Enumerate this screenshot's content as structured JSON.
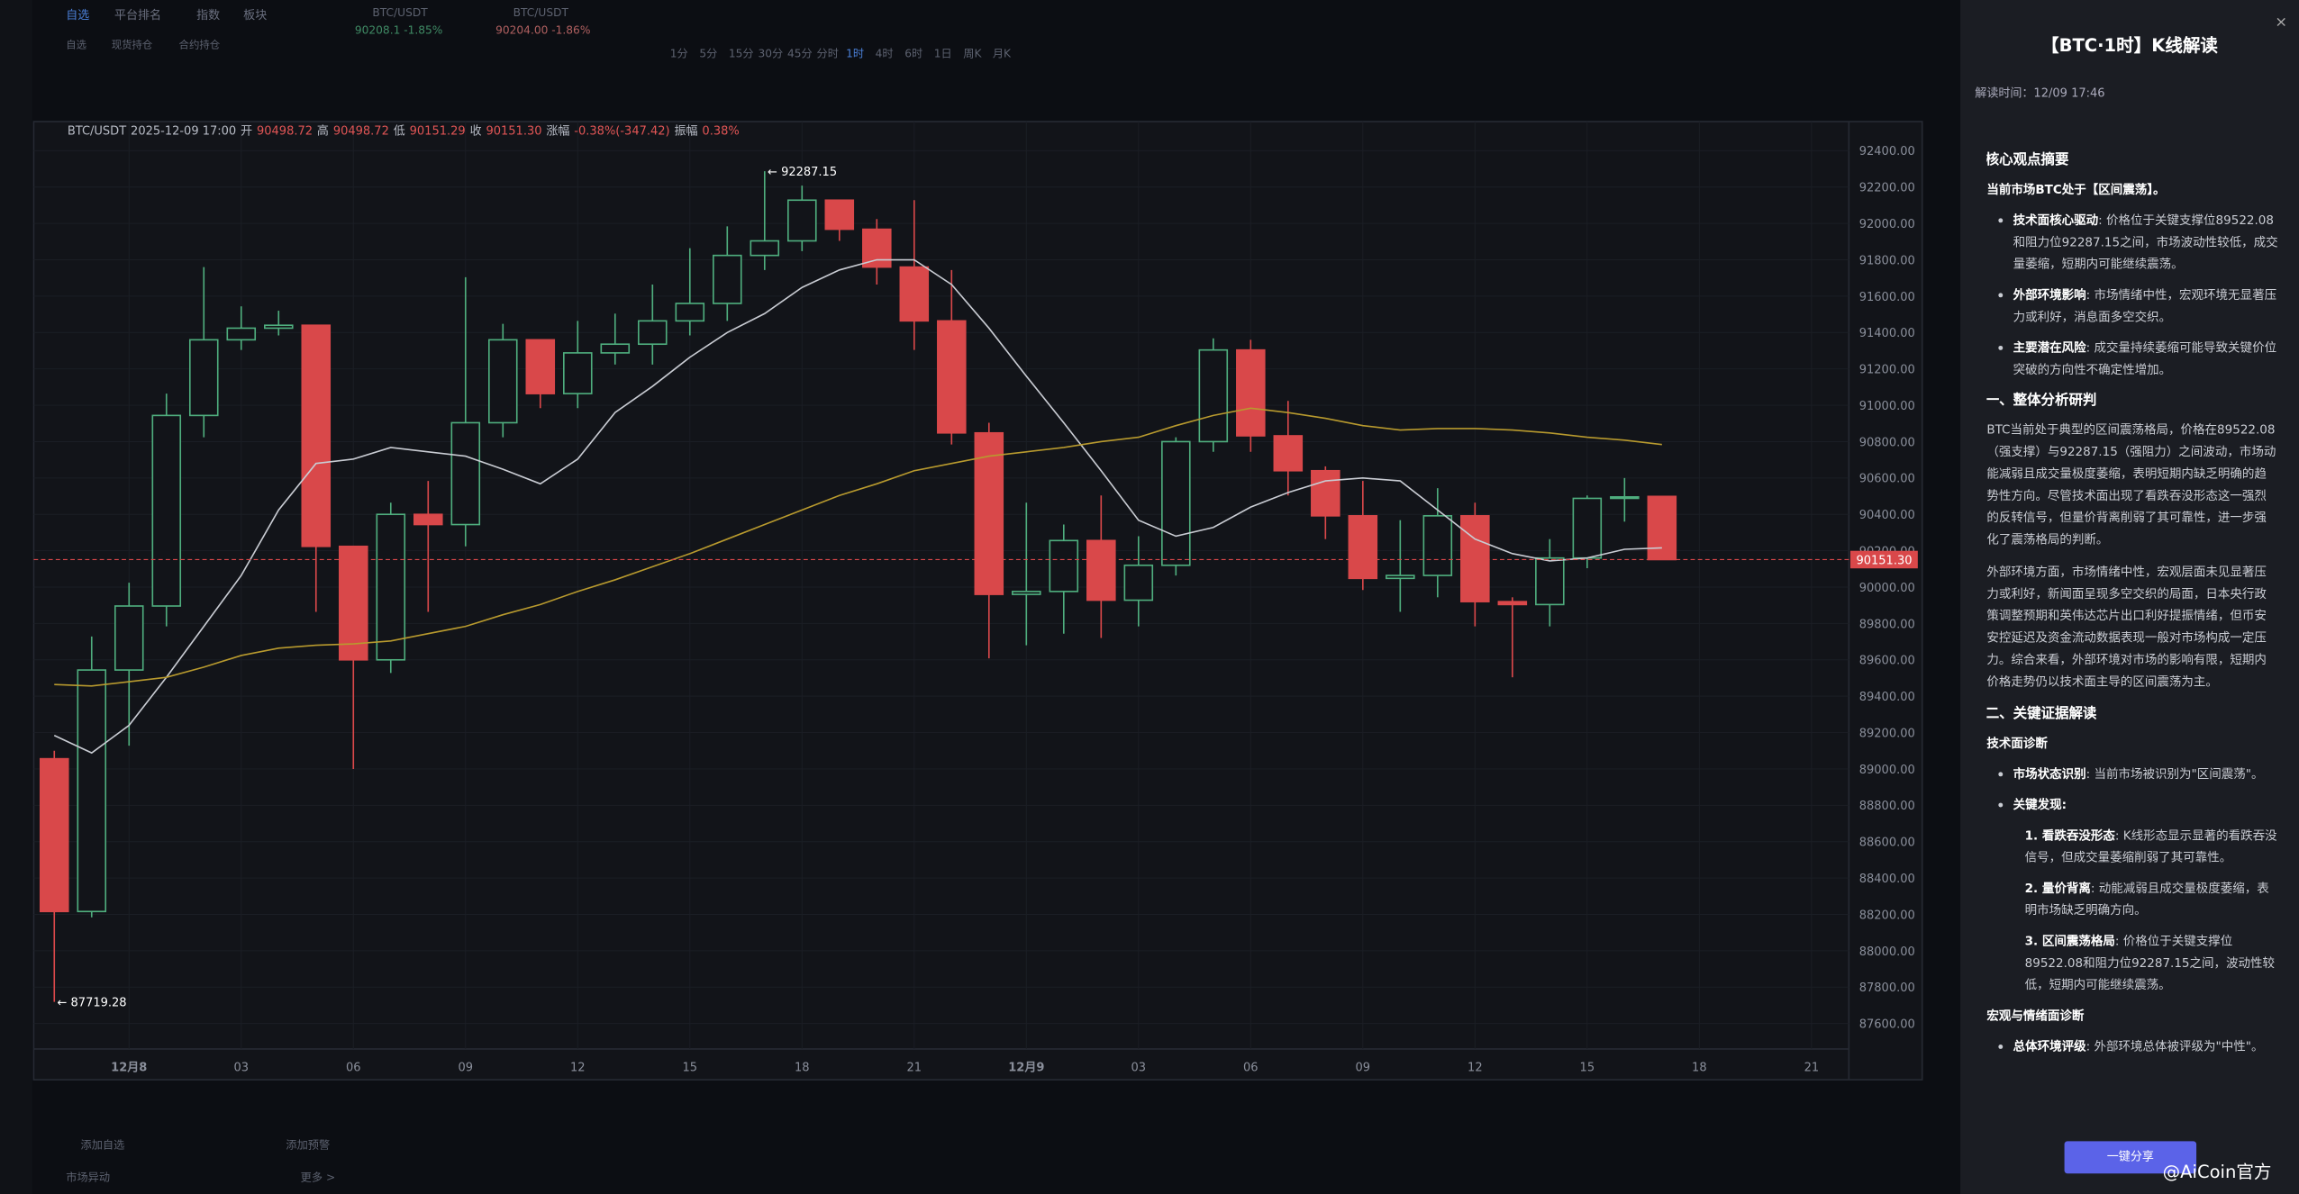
{
  "chart_data": {
    "type": "candlestick",
    "info": [
      "BTC/USDT",
      "2025-12-09 17:00",
      "开",
      "90498.72",
      "高",
      "90498.72",
      "低",
      "90151.29",
      "收",
      "90151.30",
      "涨幅",
      "-0.38%(-347.42)",
      "振幅",
      "0.38%"
    ],
    "open": [
      89056,
      88216,
      89544,
      89896,
      90944,
      91360,
      91424,
      91440,
      90224,
      89600,
      90400,
      90344,
      90904,
      91360,
      91064,
      91288,
      91336,
      91464,
      91560,
      91824,
      91904,
      92128,
      91968,
      91760,
      91464,
      90848,
      89960,
      89976,
      90256,
      89928,
      90120,
      90800,
      91304,
      90832,
      90640,
      90392,
      90048,
      90064,
      90392,
      89920,
      89904,
      90160,
      90488,
      90498.72
    ],
    "high": [
      89100,
      89728,
      90024,
      91064,
      91760,
      91544,
      91520,
      91440,
      90224,
      90464,
      90584,
      91704,
      91448,
      91360,
      91464,
      91504,
      91664,
      91864,
      91984,
      92287.15,
      92208,
      92128,
      92024,
      92128,
      91744,
      90904,
      90464,
      90344,
      90504,
      90280,
      90824,
      91368,
      91360,
      91024,
      90664,
      90584,
      90368,
      90544,
      90464,
      89944,
      90264,
      90504,
      90600,
      90498.72
    ],
    "low": [
      87719.28,
      88184,
      89128,
      89784,
      90824,
      91304,
      91384,
      89864,
      89000,
      89528,
      89864,
      90224,
      90824,
      90984,
      90984,
      91224,
      91224,
      91384,
      91464,
      91744,
      91848,
      91904,
      91664,
      91304,
      90784,
      89608,
      89680,
      89744,
      89720,
      89784,
      90064,
      90744,
      90744,
      90504,
      90264,
      89984,
      89864,
      89944,
      89784,
      89504,
      89784,
      90104,
      90360,
      90151.29
    ],
    "close": [
      88216,
      89544,
      89896,
      90944,
      91360,
      91424,
      91440,
      90224,
      89600,
      90400,
      90344,
      90904,
      91360,
      91064,
      91288,
      91336,
      91464,
      91560,
      91824,
      91904,
      92128,
      91968,
      91760,
      91464,
      90848,
      89960,
      89976,
      90256,
      89928,
      90120,
      90800,
      91304,
      90832,
      90640,
      90392,
      90048,
      90064,
      90392,
      89920,
      89904,
      90160,
      90488,
      90496,
      90151.3
    ],
    "up_color": "#4fae7e",
    "down_color": "#d9484a",
    "series": [
      {
        "color": "#c9ccd3",
        "values": [
          89184,
          89088,
          89240,
          89504,
          89784,
          90064,
          90424,
          90680,
          90704,
          90768,
          90744,
          90720,
          90648,
          90568,
          90704,
          90960,
          91104,
          91264,
          91400,
          91504,
          91648,
          91744,
          91800,
          91800,
          91664,
          91424,
          91160,
          90904,
          90640,
          90368,
          90280,
          90328,
          90440,
          90520,
          90584,
          90600,
          90584,
          90424,
          90264,
          90184,
          90144,
          90160,
          90208,
          90216
        ]
      },
      {
        "color": "#b89a2e",
        "values": [
          89464,
          89456,
          89480,
          89504,
          89560,
          89624,
          89664,
          89680,
          89688,
          89704,
          89744,
          89784,
          89848,
          89904,
          89976,
          90040,
          90112,
          90184,
          90264,
          90344,
          90424,
          90504,
          90568,
          90640,
          90680,
          90720,
          90744,
          90768,
          90800,
          90824,
          90888,
          90944,
          90984,
          90960,
          90928,
          90888,
          90864,
          90872,
          90872,
          90864,
          90848,
          90824,
          90808,
          90784
        ]
      }
    ],
    "high_label": "← 92287.15",
    "low_label": "← 87719.28",
    "last_price": {
      "value": 90151.3,
      "label": "90151.30"
    },
    "ylim": [
      87460,
      92560
    ],
    "yticks": [
      {
        "value": 92400,
        "label": "92400.00"
      },
      {
        "value": 92200,
        "label": "92200.00"
      },
      {
        "value": 92000,
        "label": "92000.00"
      },
      {
        "value": 91800,
        "label": "91800.00"
      },
      {
        "value": 91600,
        "label": "91600.00"
      },
      {
        "value": 91400,
        "label": "91400.00"
      },
      {
        "value": 91200,
        "label": "91200.00"
      },
      {
        "value": 91000,
        "label": "91000.00"
      },
      {
        "value": 90800,
        "label": "90800.00"
      },
      {
        "value": 90600,
        "label": "90600.00"
      },
      {
        "value": 90400,
        "label": "90400.00"
      },
      {
        "value": 90200,
        "label": "90200.00"
      },
      {
        "value": 90000,
        "label": "90000.00"
      },
      {
        "value": 89800,
        "label": "89800.00"
      },
      {
        "value": 89600,
        "label": "89600.00"
      },
      {
        "value": 89400,
        "label": "89400.00"
      },
      {
        "value": 89200,
        "label": "89200.00"
      },
      {
        "value": 89000,
        "label": "89000.00"
      },
      {
        "value": 88800,
        "label": "88800.00"
      },
      {
        "value": 88600,
        "label": "88600.00"
      },
      {
        "value": 88400,
        "label": "88400.00"
      },
      {
        "value": 88200,
        "label": "88200.00"
      },
      {
        "value": 88000,
        "label": "88000.00"
      },
      {
        "value": 87800,
        "label": "87800.00"
      },
      {
        "value": 87600,
        "label": "87600.00"
      }
    ],
    "xlim": [
      -0.55,
      48
    ],
    "xticks": [
      {
        "value": 2,
        "label": "12月8"
      },
      {
        "value": 5,
        "label": "03"
      },
      {
        "value": 8,
        "label": "06"
      },
      {
        "value": 11,
        "label": "09"
      },
      {
        "value": 14,
        "label": "12"
      },
      {
        "value": 17,
        "label": "15"
      },
      {
        "value": 20,
        "label": "18"
      },
      {
        "value": 23,
        "label": "21"
      },
      {
        "value": 26,
        "label": "12月9"
      },
      {
        "value": 29,
        "label": "03"
      },
      {
        "value": 32,
        "label": "06"
      },
      {
        "value": 35,
        "label": "09"
      },
      {
        "value": 38,
        "label": "12"
      },
      {
        "value": 41,
        "label": "15"
      },
      {
        "value": 44,
        "label": "18"
      },
      {
        "value": 47,
        "label": "21"
      }
    ],
    "grid": true
  },
  "ui": {
    "nav": [
      "自选",
      "平台排名",
      "指数",
      "板块"
    ],
    "subnav": [
      "自选",
      "现货持仓",
      "合约持仓"
    ],
    "tabs": [
      {
        "name": "BTC/USDT",
        "price": "90208.1 -1.85%"
      },
      {
        "name": "BTC/USDT",
        "price": "90204.00 -1.86%"
      }
    ],
    "timeframes": [
      "1分",
      "5分",
      "15分",
      "30分",
      "45分",
      "分时",
      "1时",
      "4时",
      "6时",
      "1日",
      "周K",
      "月K"
    ],
    "bottom": [
      "添加自选",
      "添加预警",
      "市场异动",
      "更多 >"
    ],
    "watermark": "@AiCoin官方"
  },
  "panel": {
    "title": "【BTC·1时】K线解读",
    "time": "解读时间：12/09 17:46",
    "share": "一键分享",
    "blocks": [
      {
        "kind": "h",
        "text": "核心观点摘要"
      },
      {
        "kind": "pb",
        "text": "当前市场BTC处于【区间震荡】。"
      },
      {
        "kind": "li",
        "bold": "技术面核心驱动",
        "text": ": 价格位于关键支撑位89522.08和阻力位92287.15之间，市场波动性较低，成交量萎缩，短期内可能继续震荡。"
      },
      {
        "kind": "li",
        "bold": "外部环境影响",
        "text": ": 市场情绪中性，宏观环境无显著压力或利好，消息面多空交织。"
      },
      {
        "kind": "li",
        "bold": "主要潜在风险",
        "text": ": 成交量持续萎缩可能导致关键价位突破的方向性不确定性增加。"
      },
      {
        "kind": "h",
        "text": "一、整体分析研判"
      },
      {
        "kind": "p",
        "text": "BTC当前处于典型的区间震荡格局，价格在89522.08（强支撑）与92287.15（强阻力）之间波动，市场动能减弱且成交量极度萎缩，表明短期内缺乏明确的趋势性方向。尽管技术面出现了看跌吞没形态这一强烈的反转信号，但量价背离削弱了其可靠性，进一步强化了震荡格局的判断。"
      },
      {
        "kind": "p",
        "text": "外部环境方面，市场情绪中性，宏观层面未见显著压力或利好，新闻面呈现多空交织的局面，日本央行政策调整预期和英伟达芯片出口利好提振情绪，但币安安控延迟及资金流动数据表现一般对市场构成一定压力。综合来看，外部环境对市场的影响有限，短期内价格走势仍以技术面主导的区间震荡为主。"
      },
      {
        "kind": "h",
        "text": "二、关键证据解读"
      },
      {
        "kind": "sub",
        "text": "技术面诊断"
      },
      {
        "kind": "li",
        "bold": "市场状态识别",
        "text": ": 当前市场被识别为\"区间震荡\"。"
      },
      {
        "kind": "li",
        "bold": "关键发现:",
        "text": ""
      },
      {
        "kind": "ni",
        "bold": "1. 看跌吞没形态",
        "text": ": K线形态显示显著的看跌吞没信号，但成交量萎缩削弱了其可靠性。"
      },
      {
        "kind": "ni",
        "bold": "2. 量价背离",
        "text": ": 动能减弱且成交量极度萎缩，表明市场缺乏明确方向。"
      },
      {
        "kind": "ni",
        "bold": "3. 区间震荡格局",
        "text": ": 价格位于关键支撑位89522.08和阻力位92287.15之间，波动性较低，短期内可能继续震荡。"
      },
      {
        "kind": "sub",
        "text": "宏观与情绪面诊断"
      },
      {
        "kind": "li",
        "bold": "总体环境评级",
        "text": ": 外部环境总体被评级为\"中性\"。"
      }
    ]
  }
}
